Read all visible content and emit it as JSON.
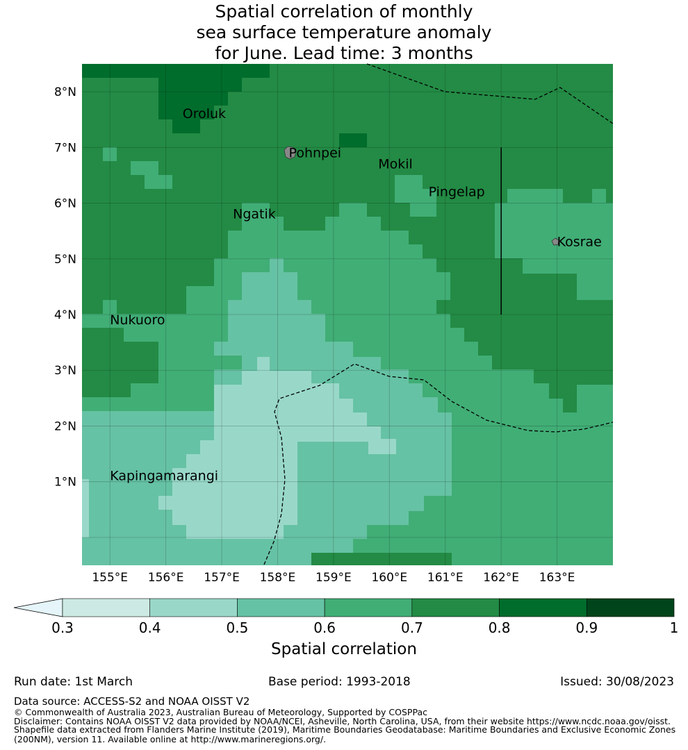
{
  "title": {
    "line1": "Spatial correlation of monthly",
    "line2": "sea surface temperature anomaly",
    "line3": "for June. Lead time: 3 months"
  },
  "map": {
    "lon_min": 154.5,
    "lon_max": 164.0,
    "lat_min": -0.5,
    "lat_max": 8.5,
    "x_ticks": [
      "155°E",
      "156°E",
      "157°E",
      "158°E",
      "159°E",
      "160°E",
      "161°E",
      "162°E",
      "163°E"
    ],
    "y_ticks": [
      "8°N",
      "7°N",
      "6°N",
      "5°N",
      "4°N",
      "3°N",
      "2°N",
      "1°N"
    ],
    "places": [
      {
        "name": "Oroluk",
        "lon": 156.3,
        "lat": 7.6
      },
      {
        "name": "Pohnpei",
        "lon": 158.2,
        "lat": 6.9
      },
      {
        "name": "Mokil",
        "lon": 159.8,
        "lat": 6.7
      },
      {
        "name": "Pingelap",
        "lon": 160.7,
        "lat": 6.2
      },
      {
        "name": "Ngatik",
        "lon": 157.2,
        "lat": 5.8
      },
      {
        "name": "Kosrae",
        "lon": 163.0,
        "lat": 5.3
      },
      {
        "name": "Nukuoro",
        "lon": 155.0,
        "lat": 3.9
      },
      {
        "name": "Kapingamarangi",
        "lon": 155.0,
        "lat": 1.1
      }
    ],
    "boundary_line": {
      "lon": 162.0,
      "lat_from": 4.0,
      "lat_to": 7.0
    },
    "palette": {
      "0.3-0.4": "#cceae3",
      "0.4-0.5": "#99d8c9",
      "0.5-0.6": "#66c2a4",
      "0.6-0.7": "#41ae76",
      "0.7-0.8": "#238b45",
      "0.8-0.9": "#006d2c",
      "0.9-1": "#00441b",
      "below_0.3": "#e5f5f9"
    }
  },
  "colorbar": {
    "ticks": [
      "0.3",
      "0.4",
      "0.5",
      "0.6",
      "0.7",
      "0.8",
      "0.9",
      "1"
    ],
    "title": "Spatial correlation"
  },
  "meta": {
    "run_date": "Run date: 1st March",
    "base_period": "Base period: 1993-2018",
    "issued": "Issued: 30/08/2023"
  },
  "footer": {
    "data_source": "Data source: ACCESS-S2 and NOAA OISST V2",
    "copyright": "© Commonwealth of Australia 2023, Australian Bureau of Meteorology, Supported by COSPPac",
    "disclaimer": "Disclaimer: Contains NOAA OISST V2 data provided by NOAA/NCEI, Asheville, North Carolina, USA, from their website https://www.ncdc.noaa.gov/oisst.",
    "shapefile1": "Shapefile data extracted from Flanders Marine Institute (2019), Maritime Boundaries Geodatabase: Maritime Boundaries and Exclusive Economic Zones",
    "shapefile2": "(200NM), version 11. Available online at http://www.marineregions.org/."
  }
}
